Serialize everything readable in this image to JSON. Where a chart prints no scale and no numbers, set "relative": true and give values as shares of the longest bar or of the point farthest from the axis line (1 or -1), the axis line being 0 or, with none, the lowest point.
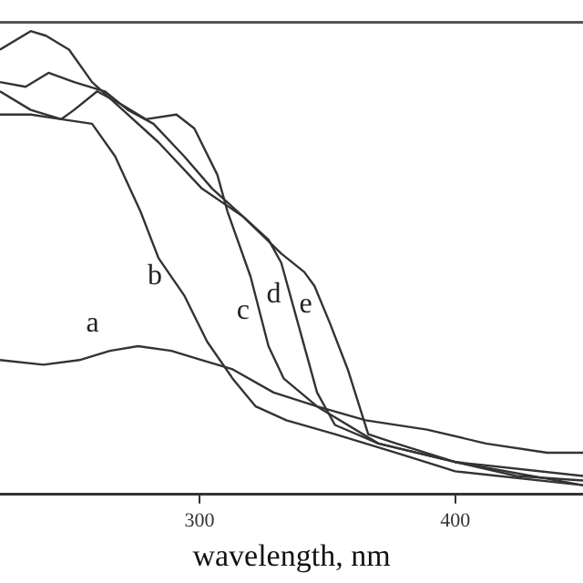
{
  "chart_data": {
    "type": "line",
    "relative": true,
    "xlabel": "wavelength, nm",
    "xlim": [
      222,
      450
    ],
    "xticks": [
      300,
      400
    ],
    "grid": false,
    "legend": false,
    "marker": "none",
    "line_style": "solid",
    "series": [
      {
        "name": "a",
        "color": "#333333",
        "x": [
          222,
          239,
          253,
          265,
          276,
          289,
          301,
          313,
          329,
          346,
          365,
          389,
          412,
          436,
          450
        ],
        "values": [
          0.29,
          0.28,
          0.29,
          0.31,
          0.32,
          0.31,
          0.29,
          0.27,
          0.22,
          0.19,
          0.16,
          0.14,
          0.11,
          0.09,
          0.09
        ]
      },
      {
        "name": "b",
        "color": "#333333",
        "x": [
          222,
          234,
          246,
          258,
          267,
          277,
          284,
          294,
          303,
          313,
          322,
          334,
          353,
          377,
          400,
          450
        ],
        "values": [
          0.82,
          0.82,
          0.81,
          0.8,
          0.73,
          0.61,
          0.51,
          0.43,
          0.33,
          0.25,
          0.19,
          0.16,
          0.13,
          0.09,
          0.05,
          0.02
        ]
      },
      {
        "name": "c",
        "color": "#333333",
        "x": [
          222,
          234,
          246,
          251,
          260,
          270,
          279,
          291,
          298,
          307,
          311,
          320,
          327,
          333,
          346,
          370,
          400,
          450
        ],
        "values": [
          0.87,
          0.83,
          0.81,
          0.83,
          0.87,
          0.84,
          0.81,
          0.82,
          0.79,
          0.69,
          0.61,
          0.47,
          0.32,
          0.25,
          0.19,
          0.11,
          0.07,
          0.02
        ]
      },
      {
        "name": "d",
        "color": "#333333",
        "x": [
          222,
          232,
          241,
          251,
          263,
          272,
          282,
          294,
          305,
          317,
          327,
          332,
          339,
          346,
          353,
          370,
          400,
          450
        ],
        "values": [
          0.89,
          0.88,
          0.91,
          0.89,
          0.87,
          0.83,
          0.8,
          0.73,
          0.66,
          0.6,
          0.55,
          0.5,
          0.36,
          0.22,
          0.15,
          0.11,
          0.07,
          0.04
        ]
      },
      {
        "name": "e",
        "color": "#333333",
        "x": [
          222,
          234,
          240,
          249,
          258,
          270,
          284,
          301,
          317,
          332,
          341,
          345,
          351,
          358,
          366,
          377,
          400,
          424,
          450
        ],
        "values": [
          0.96,
          1.0,
          0.99,
          0.96,
          0.89,
          0.83,
          0.76,
          0.66,
          0.6,
          0.52,
          0.48,
          0.45,
          0.37,
          0.27,
          0.13,
          0.11,
          0.07,
          0.04,
          0.03
        ]
      }
    ]
  }
}
